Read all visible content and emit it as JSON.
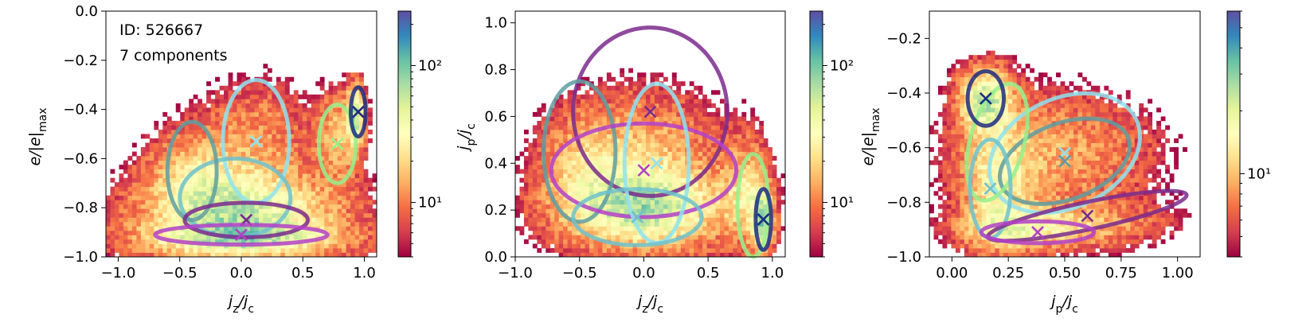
{
  "chart_data": [
    {
      "type": "heatmap",
      "xlabel": "j_z/j_c",
      "ylabel": "e/|e|_max",
      "xlim": [
        -1.1,
        1.1
      ],
      "ylim": [
        -1.0,
        0.0
      ],
      "xticks": [
        -1.0,
        -0.5,
        0.0,
        0.5,
        1.0
      ],
      "xtick_labels": [
        "−1.0",
        "−0.5",
        "0.0",
        "0.5",
        "1.0"
      ],
      "yticks": [
        -1.0,
        -0.8,
        -0.6,
        -0.4,
        -0.2,
        0.0
      ],
      "ytick_labels": [
        "−1.0",
        "−0.8",
        "−0.6",
        "−0.4",
        "−0.2",
        "0.0"
      ],
      "annotations": [
        "ID: 526667",
        "7 components"
      ],
      "colorbar": {
        "scale": "log",
        "min": 4,
        "max": 250,
        "ticks": [
          10,
          100
        ],
        "tick_labels": [
          "10¹",
          "10²"
        ]
      },
      "density_blobs": [
        {
          "cx": 0.0,
          "cy": -0.82,
          "sx": 0.55,
          "sy": 0.12,
          "w": 1.0
        },
        {
          "cx": 0.0,
          "cy": -0.93,
          "sx": 0.6,
          "sy": 0.05,
          "w": 0.6
        },
        {
          "cx": 0.93,
          "cy": -0.42,
          "sx": 0.05,
          "sy": 0.08,
          "w": 1.0
        },
        {
          "cx": 0.8,
          "cy": -0.5,
          "sx": 0.12,
          "sy": 0.12,
          "w": 0.5
        },
        {
          "cx": -0.4,
          "cy": -0.65,
          "sx": 0.25,
          "sy": 0.13,
          "w": 0.45
        },
        {
          "cx": 0.15,
          "cy": -0.5,
          "sx": 0.3,
          "sy": 0.15,
          "w": 0.35
        }
      ],
      "components": [
        {
          "cx": 0.12,
          "cy": -0.53,
          "rx": 0.27,
          "ry": 0.25,
          "angle": 0,
          "color": "#8fe3f0",
          "marker": true
        },
        {
          "cx": -0.05,
          "cy": -0.76,
          "rx": 0.45,
          "ry": 0.16,
          "angle": 0,
          "color": "#6fc2cc",
          "marker": false
        },
        {
          "cx": -0.4,
          "cy": -0.65,
          "rx": 0.2,
          "ry": 0.2,
          "angle": 0,
          "color": "#5f9ea0",
          "marker": false
        },
        {
          "cx": 0.04,
          "cy": -0.85,
          "rx": 0.5,
          "ry": 0.07,
          "angle": 0,
          "color": "#7b2a8c",
          "marker": true
        },
        {
          "cx": 0.0,
          "cy": -0.91,
          "rx": 0.7,
          "ry": 0.04,
          "angle": 0,
          "color": "#b341c8",
          "marker": true
        },
        {
          "cx": 0.78,
          "cy": -0.54,
          "rx": 0.15,
          "ry": 0.16,
          "angle": 0,
          "color": "#96f08c",
          "marker": true
        },
        {
          "cx": 0.95,
          "cy": -0.41,
          "rx": 0.06,
          "ry": 0.1,
          "angle": 0,
          "color": "#1c2d80",
          "marker": true
        }
      ]
    },
    {
      "type": "heatmap",
      "xlabel": "j_z/j_c",
      "ylabel": "j_p/j_c",
      "xlim": [
        -1.0,
        1.1
      ],
      "ylim": [
        0.0,
        1.05
      ],
      "xticks": [
        -1.0,
        -0.5,
        0.0,
        0.5,
        1.0
      ],
      "xtick_labels": [
        "−1.0",
        "−0.5",
        "0.0",
        "0.5",
        "1.0"
      ],
      "yticks": [
        0.0,
        0.2,
        0.4,
        0.6,
        0.8,
        1.0
      ],
      "ytick_labels": [
        "0.0",
        "0.2",
        "0.4",
        "0.6",
        "0.8",
        "1.0"
      ],
      "colorbar": {
        "scale": "log",
        "min": 4,
        "max": 250,
        "ticks": [
          10,
          100
        ],
        "tick_labels": [
          "10¹",
          "10²"
        ]
      },
      "density_blobs": [
        {
          "cx": 0.0,
          "cy": 0.2,
          "sx": 0.45,
          "sy": 0.12,
          "w": 1.0
        },
        {
          "cx": 0.92,
          "cy": 0.15,
          "sx": 0.06,
          "sy": 0.1,
          "w": 1.0
        },
        {
          "cx": 0.8,
          "cy": 0.3,
          "sx": 0.12,
          "sy": 0.15,
          "w": 0.5
        },
        {
          "cx": 0.0,
          "cy": 0.45,
          "sx": 0.4,
          "sy": 0.18,
          "w": 0.5
        },
        {
          "cx": -0.5,
          "cy": 0.4,
          "sx": 0.22,
          "sy": 0.15,
          "w": 0.35
        }
      ],
      "components": [
        {
          "cx": 0.05,
          "cy": 0.62,
          "rx": 0.6,
          "ry": 0.36,
          "angle": 0,
          "color": "#7b2a8c",
          "marker": true
        },
        {
          "cx": -0.5,
          "cy": 0.45,
          "rx": 0.28,
          "ry": 0.3,
          "angle": 0,
          "color": "#5f9ea0",
          "marker": false
        },
        {
          "cx": 0.0,
          "cy": 0.37,
          "rx": 0.72,
          "ry": 0.2,
          "angle": 0,
          "color": "#b341c8",
          "marker": true
        },
        {
          "cx": 0.1,
          "cy": 0.4,
          "rx": 0.25,
          "ry": 0.34,
          "angle": 0,
          "color": "#8fe3f0",
          "marker": true
        },
        {
          "cx": -0.05,
          "cy": 0.17,
          "rx": 0.5,
          "ry": 0.12,
          "angle": 0,
          "color": "#6fc2cc",
          "marker": true
        },
        {
          "cx": 0.85,
          "cy": 0.22,
          "rx": 0.12,
          "ry": 0.22,
          "angle": 0,
          "color": "#96f08c",
          "marker": false
        },
        {
          "cx": 0.93,
          "cy": 0.16,
          "rx": 0.06,
          "ry": 0.13,
          "angle": 0,
          "color": "#1c2d80",
          "marker": true
        }
      ]
    },
    {
      "type": "heatmap",
      "xlabel": "j_p/j_c",
      "ylabel": "e/|e|_max",
      "xlim": [
        -0.1,
        1.1
      ],
      "ylim": [
        -1.0,
        -0.1
      ],
      "xticks": [
        0.0,
        0.25,
        0.5,
        0.75,
        1.0
      ],
      "xtick_labels": [
        "0.00",
        "0.25",
        "0.50",
        "0.75",
        "1.00"
      ],
      "yticks": [
        -1.0,
        -0.8,
        -0.6,
        -0.4,
        -0.2
      ],
      "ytick_labels": [
        "−1.0",
        "−0.8",
        "−0.6",
        "−0.4",
        "−0.2"
      ],
      "colorbar": {
        "scale": "log",
        "min": 4,
        "max": 60,
        "ticks": [
          10
        ],
        "tick_labels": [
          "10¹"
        ]
      },
      "density_blobs": [
        {
          "cx": 0.15,
          "cy": -0.42,
          "sx": 0.08,
          "sy": 0.08,
          "w": 1.0
        },
        {
          "cx": 0.2,
          "cy": -0.75,
          "sx": 0.1,
          "sy": 0.15,
          "w": 0.6
        },
        {
          "cx": 0.3,
          "cy": -0.9,
          "sx": 0.2,
          "sy": 0.05,
          "w": 0.5
        },
        {
          "cx": 0.45,
          "cy": -0.62,
          "sx": 0.3,
          "sy": 0.15,
          "w": 0.45
        },
        {
          "cx": 0.6,
          "cy": -0.88,
          "sx": 0.25,
          "sy": 0.06,
          "w": 0.35
        }
      ],
      "components": [
        {
          "cx": 0.5,
          "cy": -0.62,
          "rx": 0.35,
          "ry": 0.2,
          "angle": -25,
          "color": "#8fe3f0",
          "marker": true
        },
        {
          "cx": 0.5,
          "cy": -0.65,
          "rx": 0.3,
          "ry": 0.14,
          "angle": -20,
          "color": "#5f9ea0",
          "marker": true
        },
        {
          "cx": 0.2,
          "cy": -0.58,
          "rx": 0.12,
          "ry": 0.22,
          "angle": 15,
          "color": "#96f08c",
          "marker": false
        },
        {
          "cx": 0.17,
          "cy": -0.75,
          "rx": 0.09,
          "ry": 0.18,
          "angle": 0,
          "color": "#6fc2cc",
          "marker": true
        },
        {
          "cx": 0.15,
          "cy": -0.42,
          "rx": 0.08,
          "ry": 0.1,
          "angle": 0,
          "color": "#1c2d80",
          "marker": true
        },
        {
          "cx": 0.6,
          "cy": -0.85,
          "rx": 0.45,
          "ry": 0.05,
          "angle": -12,
          "color": "#7b2a8c",
          "marker": true
        },
        {
          "cx": 0.38,
          "cy": -0.91,
          "rx": 0.25,
          "ry": 0.04,
          "angle": 0,
          "color": "#b341c8",
          "marker": true
        }
      ]
    }
  ]
}
